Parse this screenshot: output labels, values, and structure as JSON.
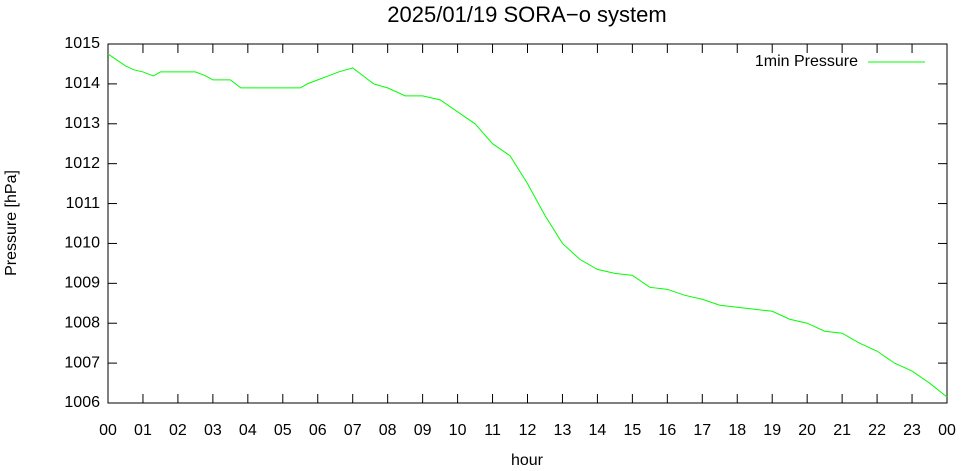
{
  "chart_data": {
    "type": "line",
    "title": "2025/01/19 SORA−o system",
    "x_label": "hour",
    "y_label": "Pressure [hPa]",
    "legend": "top-right",
    "grid": false,
    "x": [
      0,
      0.25,
      0.5,
      0.75,
      1,
      1.3,
      1.5,
      2,
      2.5,
      2.8,
      3,
      3.5,
      3.8,
      4,
      4.5,
      5,
      5.5,
      5.7,
      6,
      6.3,
      6.6,
      7,
      7.3,
      7.6,
      8,
      8.5,
      9,
      9.5,
      10,
      10.5,
      11,
      11.5,
      12,
      12.5,
      13,
      13.5,
      14,
      14.5,
      15,
      15.5,
      16,
      16.5,
      17,
      17.5,
      18,
      18.5,
      19,
      19.5,
      20,
      20.5,
      21,
      21.5,
      22,
      22.5,
      23,
      23.5,
      24
    ],
    "series": [
      {
        "name": "1min Pressure",
        "color": "#00ff00",
        "values": [
          1014.75,
          1014.6,
          1014.45,
          1014.35,
          1014.3,
          1014.2,
          1014.3,
          1014.3,
          1014.3,
          1014.2,
          1014.1,
          1014.1,
          1013.9,
          1013.9,
          1013.9,
          1013.9,
          1013.9,
          1014.0,
          1014.1,
          1014.2,
          1014.3,
          1014.4,
          1014.2,
          1014.0,
          1013.9,
          1013.7,
          1013.7,
          1013.6,
          1013.3,
          1013.0,
          1012.5,
          1012.2,
          1011.5,
          1010.7,
          1010.0,
          1009.6,
          1009.35,
          1009.25,
          1009.2,
          1008.9,
          1008.85,
          1008.7,
          1008.6,
          1008.45,
          1008.4,
          1008.35,
          1008.3,
          1008.1,
          1008.0,
          1007.8,
          1007.75,
          1007.5,
          1007.3,
          1007.0,
          1006.8,
          1006.5,
          1006.15
        ]
      }
    ],
    "xlim": [
      0,
      24
    ],
    "xticks": [
      {
        "value": 0,
        "label": "00"
      },
      {
        "value": 1,
        "label": "01"
      },
      {
        "value": 2,
        "label": "02"
      },
      {
        "value": 3,
        "label": "03"
      },
      {
        "value": 4,
        "label": "04"
      },
      {
        "value": 5,
        "label": "05"
      },
      {
        "value": 6,
        "label": "06"
      },
      {
        "value": 7,
        "label": "07"
      },
      {
        "value": 8,
        "label": "08"
      },
      {
        "value": 9,
        "label": "09"
      },
      10,
      11,
      12,
      13,
      14,
      15,
      16,
      17,
      18,
      19,
      20,
      21,
      22,
      23,
      {
        "value": 24,
        "label": "00"
      }
    ],
    "ylim": [
      1006,
      1015
    ],
    "yticks": [
      1006,
      1007,
      1008,
      1009,
      1010,
      1011,
      1012,
      1013,
      1014,
      1015
    ]
  }
}
